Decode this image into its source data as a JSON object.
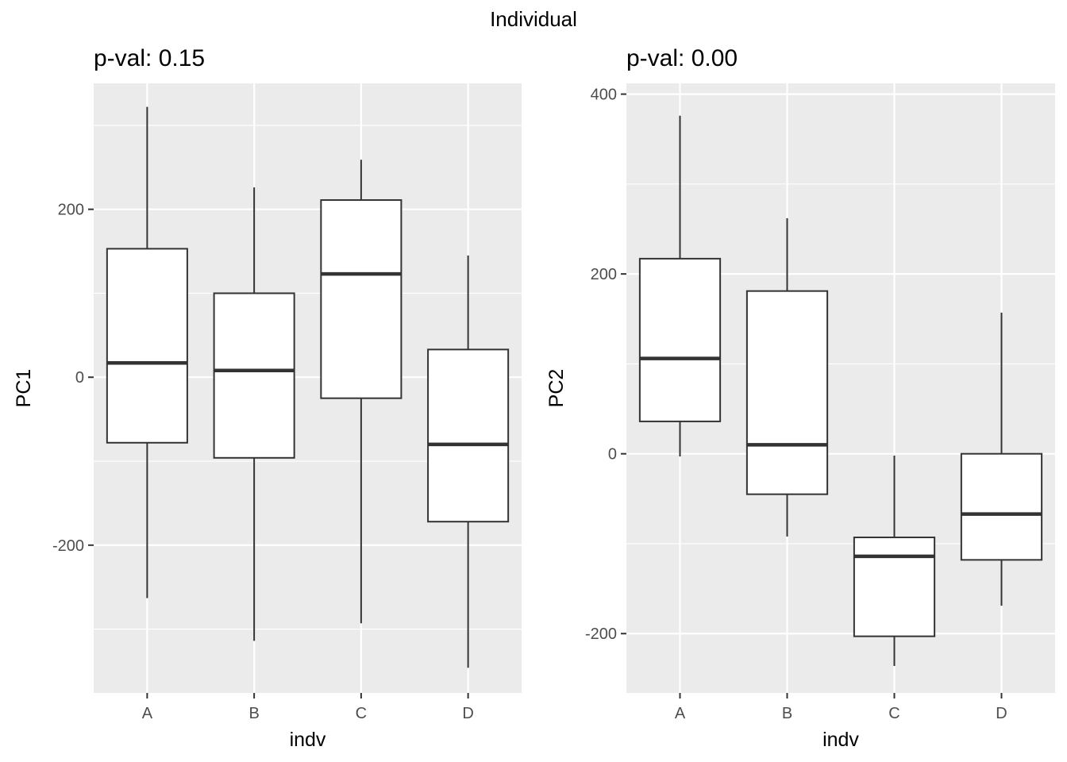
{
  "suptitle": "Individual",
  "chart_data": [
    {
      "type": "box",
      "title": "p-val: 0.15",
      "xlabel": "indv",
      "ylabel": "PC1",
      "categories": [
        "A",
        "B",
        "C",
        "D"
      ],
      "ylim": [
        -376,
        350
      ],
      "yticks": [
        -200,
        0,
        200
      ],
      "ytick_labels": [
        "-200",
        "0",
        "200"
      ],
      "boxes": [
        {
          "category": "A",
          "whisker_low": -263,
          "q1": -78,
          "median": 17,
          "q3": 153,
          "whisker_high": 322
        },
        {
          "category": "B",
          "whisker_low": -314,
          "q1": -96,
          "median": 8,
          "q3": 100,
          "whisker_high": 226
        },
        {
          "category": "C",
          "whisker_low": -293,
          "q1": -25,
          "median": 123,
          "q3": 211,
          "whisker_high": 259
        },
        {
          "category": "D",
          "whisker_low": -346,
          "q1": -172,
          "median": -80,
          "q3": 33,
          "whisker_high": 145
        }
      ],
      "grid": true,
      "panel_background": "#ebebeb",
      "grid_color": "#ffffff",
      "box_fill": "#ffffff",
      "box_line_color": "#333333"
    },
    {
      "type": "box",
      "title": "p-val: 0.00",
      "xlabel": "indv",
      "ylabel": "PC2",
      "categories": [
        "A",
        "B",
        "C",
        "D"
      ],
      "ylim": [
        -266,
        412
      ],
      "yticks": [
        -200,
        0,
        200,
        400
      ],
      "ytick_labels": [
        "-200",
        "0",
        "200",
        "400"
      ],
      "boxes": [
        {
          "category": "A",
          "whisker_low": -3,
          "q1": 36,
          "median": 106,
          "q3": 217,
          "whisker_high": 376
        },
        {
          "category": "B",
          "whisker_low": -92,
          "q1": -45,
          "median": 10,
          "q3": 181,
          "whisker_high": 262
        },
        {
          "category": "C",
          "whisker_low": -236,
          "q1": -203,
          "median": -114,
          "q3": -93,
          "whisker_high": -2
        },
        {
          "category": "D",
          "whisker_low": -169,
          "q1": -118,
          "median": -67,
          "q3": 0,
          "whisker_high": 157
        }
      ],
      "grid": true,
      "panel_background": "#ebebeb",
      "grid_color": "#ffffff",
      "box_fill": "#ffffff",
      "box_line_color": "#333333"
    }
  ]
}
